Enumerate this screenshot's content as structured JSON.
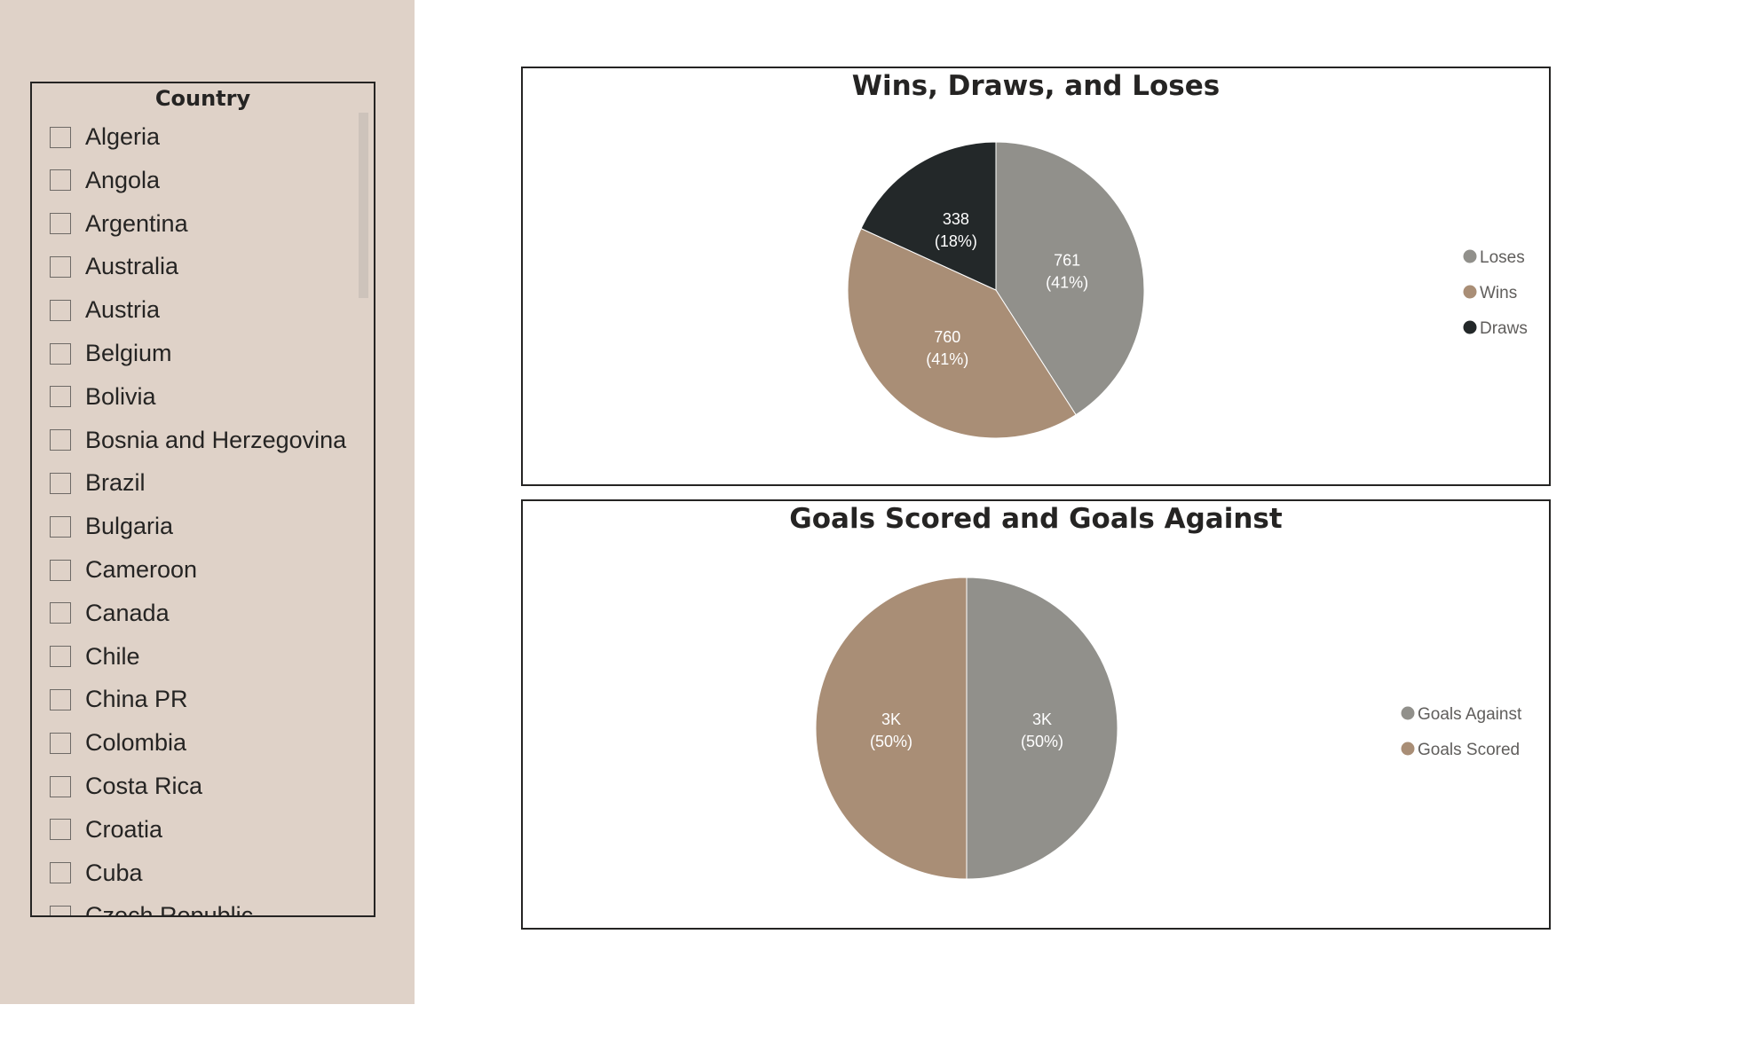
{
  "slicer": {
    "title": "Country",
    "items": [
      "Algeria",
      "Angola",
      "Argentina",
      "Australia",
      "Austria",
      "Belgium",
      "Bolivia",
      "Bosnia and Herzegovina",
      "Brazil",
      "Bulgaria",
      "Cameroon",
      "Canada",
      "Chile",
      "China PR",
      "Colombia",
      "Costa Rica",
      "Croatia",
      "Cuba",
      "Czech Republic"
    ]
  },
  "colors": {
    "gray": "#91908b",
    "tan": "#a98e76",
    "dark": "#232829",
    "legend_text": "#605e5c"
  },
  "chart_data": [
    {
      "type": "pie",
      "title": "Wins, Draws, and Loses",
      "legend_position": "right",
      "slices": [
        {
          "name": "Loses",
          "value": 761,
          "label": "761",
          "percent": "(41%)",
          "color": "#91908b"
        },
        {
          "name": "Wins",
          "value": 760,
          "label": "760",
          "percent": "(41%)",
          "color": "#a98e76"
        },
        {
          "name": "Draws",
          "value": 338,
          "label": "338",
          "percent": "(18%)",
          "color": "#232829"
        }
      ]
    },
    {
      "type": "pie",
      "title": "Goals Scored and Goals Against",
      "legend_position": "right",
      "slices": [
        {
          "name": "Goals Against",
          "value": 50,
          "label": "3K",
          "percent": "(50%)",
          "color": "#91908b"
        },
        {
          "name": "Goals Scored",
          "value": 50,
          "label": "3K",
          "percent": "(50%)",
          "color": "#a98e76"
        }
      ]
    }
  ]
}
